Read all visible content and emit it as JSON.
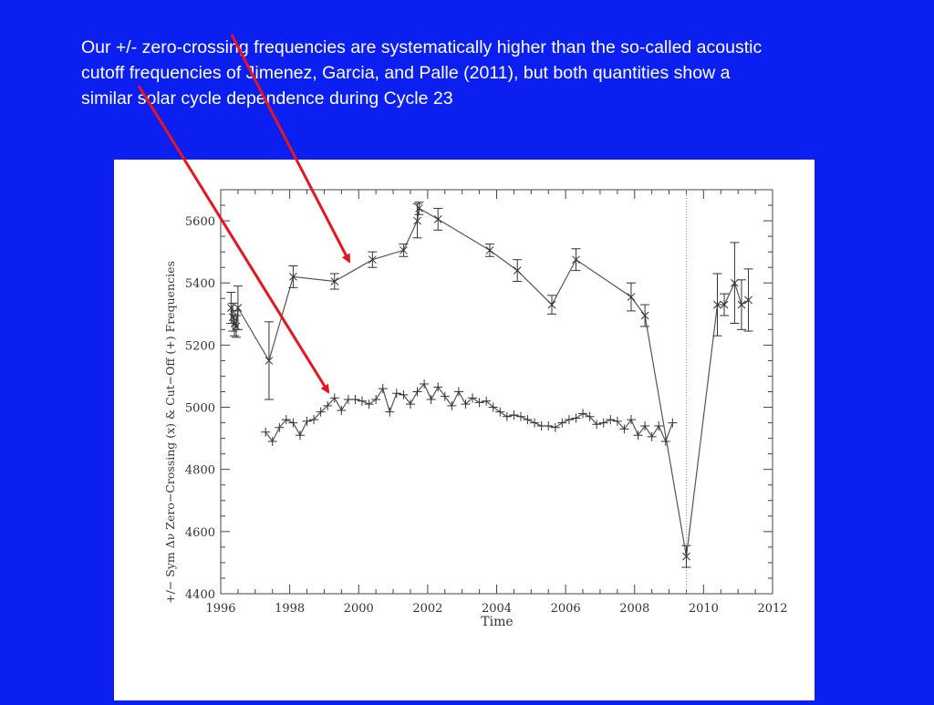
{
  "caption": {
    "line1": "Our +/- zero-crossing frequencies are systematically higher than the so-called acoustic",
    "line2": "cutoff frequencies of Jimenez, Garcia, and Palle (2011),  but both quantities show a",
    "line3": "similar solar  cycle dependence during Cycle 23"
  },
  "colors": {
    "background": "#0a1ff0",
    "panel": "#ffffff",
    "arrow": "#e8141e",
    "series": "#555555"
  },
  "chart_data": {
    "type": "line",
    "xlabel": "Time",
    "ylabel": "+/−  Sym Δν  Zero−Crossing  (x)  &  Cut−Off  (+)  Frequencies",
    "xlim": [
      1996,
      2012
    ],
    "ylim": [
      4400,
      5700
    ],
    "xticks": [
      1996,
      1998,
      2000,
      2002,
      2004,
      2006,
      2008,
      2010,
      2012
    ],
    "yticks": [
      4400,
      4600,
      4800,
      5000,
      5200,
      5400,
      5600
    ],
    "vline_x": 2009.5,
    "grid": false,
    "series": [
      {
        "marker": "x",
        "points": [
          {
            "x": 1996.3,
            "y": 5320,
            "err": 50
          },
          {
            "x": 1996.35,
            "y": 5290,
            "err": 45
          },
          {
            "x": 1996.4,
            "y": 5270,
            "err": 40
          },
          {
            "x": 1996.45,
            "y": 5260,
            "err": 35
          },
          {
            "x": 1996.5,
            "y": 5320,
            "err": 70
          },
          {
            "x": 1997.4,
            "y": 5150,
            "err": 125
          },
          {
            "x": 1998.1,
            "y": 5420,
            "err": 35
          },
          {
            "x": 1999.3,
            "y": 5405,
            "err": 25
          },
          {
            "x": 2000.4,
            "y": 5475,
            "err": 25
          },
          {
            "x": 2001.3,
            "y": 5505,
            "err": 20
          },
          {
            "x": 2001.7,
            "y": 5600,
            "err": 55
          },
          {
            "x": 2001.75,
            "y": 5640,
            "err": 20
          },
          {
            "x": 2002.3,
            "y": 5605,
            "err": 35
          },
          {
            "x": 2003.8,
            "y": 5505,
            "err": 20
          },
          {
            "x": 2004.6,
            "y": 5440,
            "err": 35
          },
          {
            "x": 2005.6,
            "y": 5330,
            "err": 30
          },
          {
            "x": 2006.3,
            "y": 5475,
            "err": 35
          },
          {
            "x": 2007.9,
            "y": 5355,
            "err": 45
          },
          {
            "x": 2008.3,
            "y": 5295,
            "err": 35
          },
          {
            "x": 2009.5,
            "y": 4520,
            "err": 35
          },
          {
            "x": 2010.4,
            "y": 5330,
            "err": 100
          },
          {
            "x": 2010.6,
            "y": 5330,
            "err": 35
          },
          {
            "x": 2010.9,
            "y": 5400,
            "err": 130
          },
          {
            "x": 2011.1,
            "y": 5330,
            "err": 80
          },
          {
            "x": 2011.3,
            "y": 5345,
            "err": 100
          }
        ]
      },
      {
        "marker": "+",
        "points": [
          {
            "x": 1997.3,
            "y": 4920
          },
          {
            "x": 1997.5,
            "y": 4890
          },
          {
            "x": 1997.7,
            "y": 4935
          },
          {
            "x": 1997.9,
            "y": 4960
          },
          {
            "x": 1998.1,
            "y": 4950
          },
          {
            "x": 1998.3,
            "y": 4910
          },
          {
            "x": 1998.5,
            "y": 4955
          },
          {
            "x": 1998.7,
            "y": 4960
          },
          {
            "x": 1998.9,
            "y": 4985
          },
          {
            "x": 1999.1,
            "y": 5005
          },
          {
            "x": 1999.3,
            "y": 5030
          },
          {
            "x": 1999.5,
            "y": 4990
          },
          {
            "x": 1999.7,
            "y": 5025
          },
          {
            "x": 1999.9,
            "y": 5025
          },
          {
            "x": 2000.1,
            "y": 5020
          },
          {
            "x": 2000.3,
            "y": 5010
          },
          {
            "x": 2000.5,
            "y": 5025
          },
          {
            "x": 2000.7,
            "y": 5060
          },
          {
            "x": 2000.9,
            "y": 4985
          },
          {
            "x": 2001.1,
            "y": 5045
          },
          {
            "x": 2001.3,
            "y": 5040
          },
          {
            "x": 2001.5,
            "y": 5010
          },
          {
            "x": 2001.7,
            "y": 5050
          },
          {
            "x": 2001.9,
            "y": 5075
          },
          {
            "x": 2002.1,
            "y": 5025
          },
          {
            "x": 2002.3,
            "y": 5065
          },
          {
            "x": 2002.5,
            "y": 5035
          },
          {
            "x": 2002.7,
            "y": 5005
          },
          {
            "x": 2002.9,
            "y": 5050
          },
          {
            "x": 2003.1,
            "y": 5010
          },
          {
            "x": 2003.3,
            "y": 5030
          },
          {
            "x": 2003.5,
            "y": 5015
          },
          {
            "x": 2003.7,
            "y": 5020
          },
          {
            "x": 2003.9,
            "y": 5000
          },
          {
            "x": 2004.1,
            "y": 4985
          },
          {
            "x": 2004.3,
            "y": 4970
          },
          {
            "x": 2004.5,
            "y": 4975
          },
          {
            "x": 2004.7,
            "y": 4970
          },
          {
            "x": 2004.9,
            "y": 4960
          },
          {
            "x": 2005.1,
            "y": 4950
          },
          {
            "x": 2005.3,
            "y": 4940
          },
          {
            "x": 2005.5,
            "y": 4940
          },
          {
            "x": 2005.7,
            "y": 4935
          },
          {
            "x": 2005.9,
            "y": 4950
          },
          {
            "x": 2006.1,
            "y": 4960
          },
          {
            "x": 2006.3,
            "y": 4965
          },
          {
            "x": 2006.5,
            "y": 4980
          },
          {
            "x": 2006.7,
            "y": 4970
          },
          {
            "x": 2006.9,
            "y": 4945
          },
          {
            "x": 2007.1,
            "y": 4950
          },
          {
            "x": 2007.3,
            "y": 4960
          },
          {
            "x": 2007.5,
            "y": 4955
          },
          {
            "x": 2007.7,
            "y": 4930
          },
          {
            "x": 2007.9,
            "y": 4960
          },
          {
            "x": 2008.1,
            "y": 4910
          },
          {
            "x": 2008.3,
            "y": 4940
          },
          {
            "x": 2008.5,
            "y": 4905
          },
          {
            "x": 2008.7,
            "y": 4940
          },
          {
            "x": 2008.9,
            "y": 4890
          },
          {
            "x": 2009.1,
            "y": 4950
          }
        ]
      }
    ]
  }
}
